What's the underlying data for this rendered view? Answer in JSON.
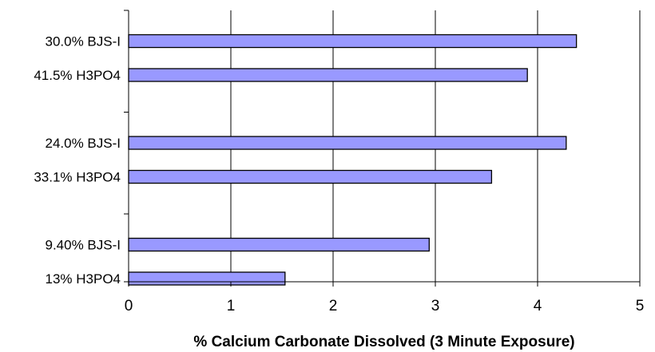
{
  "chart_data": {
    "type": "bar",
    "orientation": "horizontal",
    "title": "",
    "xlabel": "% Calcium Carbonate Dissolved (3 Minute Exposure)",
    "ylabel": "",
    "xlim": [
      0,
      5
    ],
    "xticks": [
      0,
      1,
      2,
      3,
      4,
      5
    ],
    "grid": "vertical",
    "legend": "none",
    "bar_color": "#9999ff",
    "bar_edge_color": "#000000",
    "groups": [
      {
        "bars": [
          {
            "label": "30.0% BJS-I",
            "value": 4.38
          },
          {
            "label": "41.5% H3PO4",
            "value": 3.9
          }
        ]
      },
      {
        "bars": [
          {
            "label": "24.0% BJS-I",
            "value": 4.28
          },
          {
            "label": "33.1% H3PO4",
            "value": 3.55
          }
        ]
      },
      {
        "bars": [
          {
            "label": "9.40% BJS-I",
            "value": 2.94
          },
          {
            "label": "13% H3PO4",
            "value": 1.53
          }
        ]
      }
    ]
  }
}
